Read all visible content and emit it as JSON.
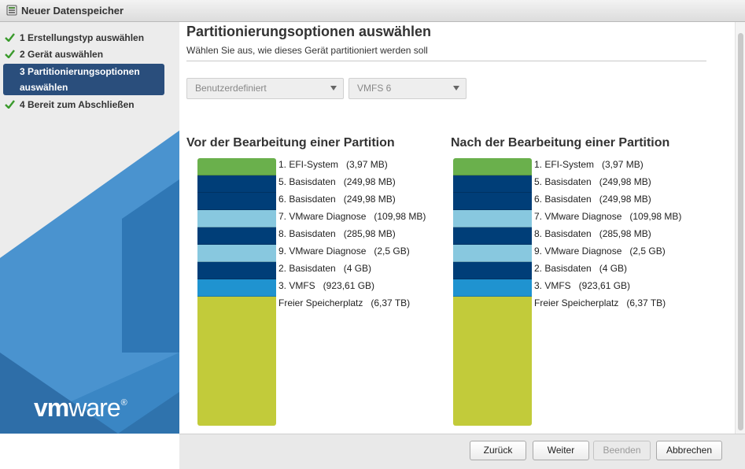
{
  "window": {
    "title": "Neuer Datenspeicher"
  },
  "steps": [
    {
      "label": "1  Erstellungstyp auswählen",
      "done": true
    },
    {
      "label": "2  Gerät auswählen",
      "done": true
    },
    {
      "label": "3  Partitionierungsoptionen auswählen",
      "done": false,
      "active": true
    },
    {
      "label": "4  Bereit zum Abschließen",
      "done": true
    }
  ],
  "brand": {
    "logo_text": "vmware",
    "logo_prefix": "vm",
    "logo_suffix": "ware",
    "registered": "®"
  },
  "page": {
    "title": "Partitionierungsoptionen auswählen",
    "subtitle": "Wählen Sie aus, wie dieses Gerät partitioniert werden soll"
  },
  "dropdowns": {
    "layout": {
      "value": "Benutzerdefiniert"
    },
    "vmfs": {
      "value": "VMFS 6"
    }
  },
  "colors": {
    "efi": "#6ab04c",
    "basisdaten": "#003e78",
    "diagnose": "#88c8df",
    "vmfs": "#1f93d0",
    "free": "#c2cb3a",
    "sidebar_triangle_dark": "#2e6ea8",
    "sidebar_triangle_light": "#3a86c4",
    "check": "#3a9a2c"
  },
  "before": {
    "title": "Vor der Bearbeitung einer Partition",
    "partitions": [
      {
        "label": "1. EFI-System   (3,97 MB)",
        "kind": "efi"
      },
      {
        "label": "5. Basisdaten   (249,98 MB)",
        "kind": "basisdaten"
      },
      {
        "label": "6. Basisdaten   (249,98 MB)",
        "kind": "basisdaten"
      },
      {
        "label": "7. VMware Diagnose   (109,98 MB)",
        "kind": "diagnose"
      },
      {
        "label": "8. Basisdaten   (285,98 MB)",
        "kind": "basisdaten"
      },
      {
        "label": "9. VMware Diagnose   (2,5 GB)",
        "kind": "diagnose"
      },
      {
        "label": "2. Basisdaten   (4 GB)",
        "kind": "basisdaten"
      },
      {
        "label": "3. VMFS   (923,61 GB)",
        "kind": "vmfs"
      },
      {
        "label": "Freier Speicherplatz   (6,37 TB)",
        "kind": "free"
      }
    ]
  },
  "after": {
    "title": "Nach der Bearbeitung einer Partition",
    "partitions": [
      {
        "label": "1. EFI-System   (3,97 MB)",
        "kind": "efi"
      },
      {
        "label": "5. Basisdaten   (249,98 MB)",
        "kind": "basisdaten"
      },
      {
        "label": "6. Basisdaten   (249,98 MB)",
        "kind": "basisdaten"
      },
      {
        "label": "7. VMware Diagnose   (109,98 MB)",
        "kind": "diagnose"
      },
      {
        "label": "8. Basisdaten   (285,98 MB)",
        "kind": "basisdaten"
      },
      {
        "label": "9. VMware Diagnose   (2,5 GB)",
        "kind": "diagnose"
      },
      {
        "label": "2. Basisdaten   (4 GB)",
        "kind": "basisdaten"
      },
      {
        "label": "3. VMFS   (923,61 GB)",
        "kind": "vmfs"
      },
      {
        "label": "Freier Speicherplatz   (6,37 TB)",
        "kind": "free"
      }
    ]
  },
  "footer": {
    "back": "Zurück",
    "next": "Weiter",
    "finish": "Beenden",
    "cancel": "Abbrechen"
  }
}
